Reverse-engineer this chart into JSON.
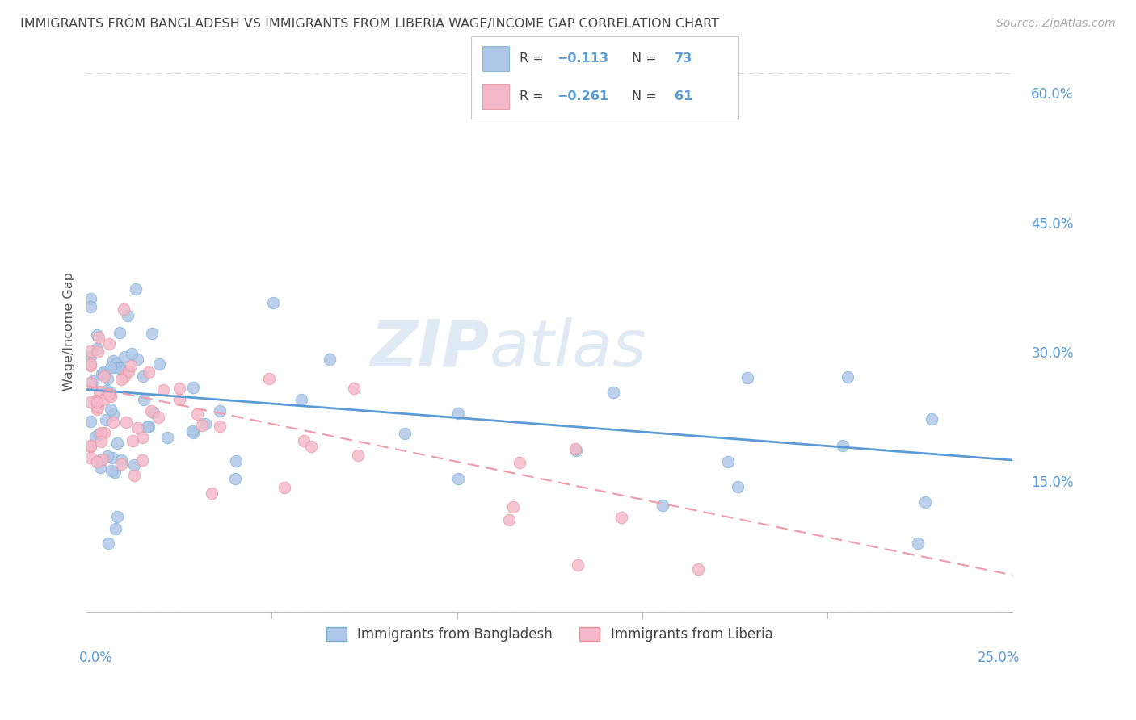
{
  "title": "IMMIGRANTS FROM BANGLADESH VS IMMIGRANTS FROM LIBERIA WAGE/INCOME GAP CORRELATION CHART",
  "source": "Source: ZipAtlas.com",
  "legend_label1": "Immigrants from Bangladesh",
  "legend_label2": "Immigrants from Liberia",
  "legend_r1": "R = −0.113",
  "legend_n1": "N = 73",
  "legend_r2": "R = −0.261",
  "legend_n2": "N = 61",
  "ylabel": "Wage/Income Gap",
  "bg_color": "#ffffff",
  "scatter_color_bd": "#aec6e8",
  "scatter_edge_bd": "#7aafd4",
  "scatter_color_lb": "#f4b8c8",
  "scatter_edge_lb": "#e8909a",
  "line_color_bd": "#5b9bd5",
  "line_color_lb": "#f09aaa",
  "title_color": "#444444",
  "axis_color": "#5b9bd5",
  "grid_color": "#d8d8d8",
  "watermark_color": "#dde8f4",
  "right_labels": [
    [
      "15.0%",
      0.15
    ],
    [
      "30.0%",
      0.3
    ],
    [
      "45.0%",
      0.45
    ],
    [
      "60.0%",
      0.6
    ]
  ],
  "xlim": [
    0.0,
    0.25
  ],
  "ylim": [
    0.0,
    0.65
  ],
  "xstart_label": "0.0%",
  "xend_label": "25.0%"
}
